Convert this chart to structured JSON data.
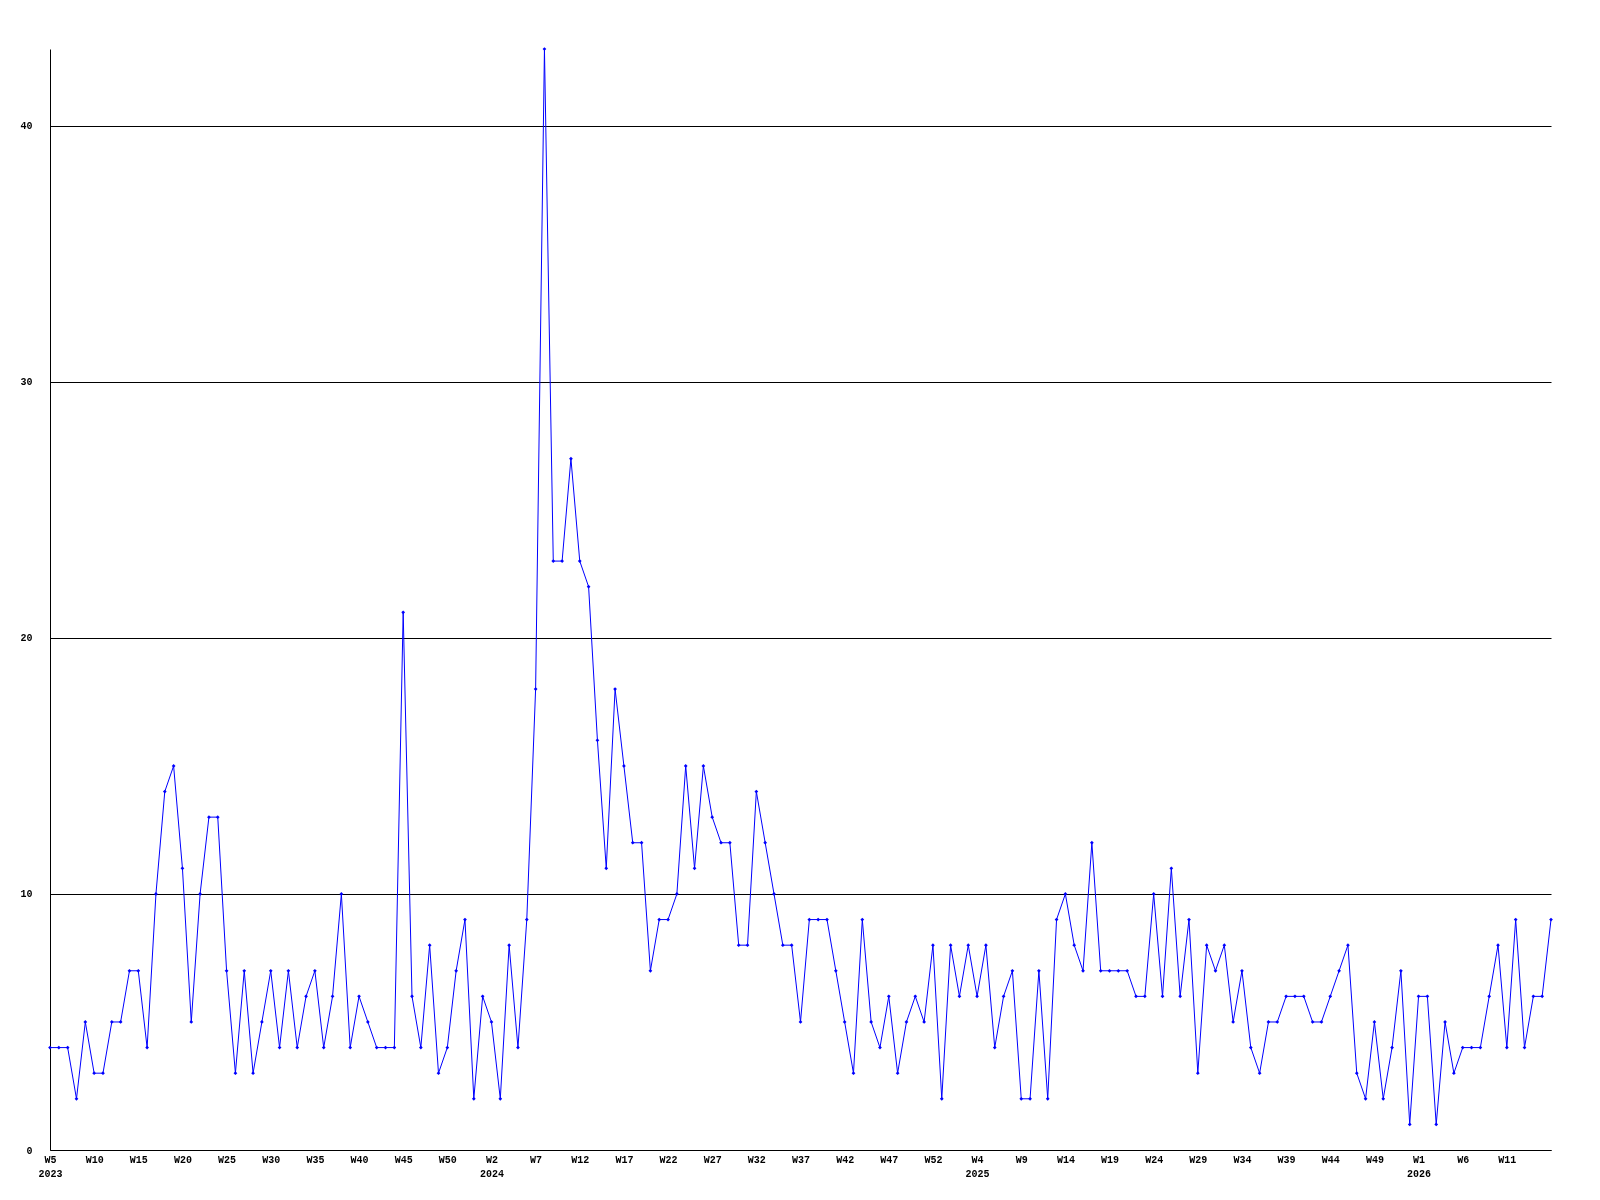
{
  "chart_data": {
    "type": "line",
    "categories": [
      "W5\n2023",
      null,
      null,
      null,
      null,
      "W10",
      null,
      null,
      null,
      null,
      "W15",
      null,
      null,
      null,
      null,
      "W20",
      null,
      null,
      null,
      null,
      "W25",
      null,
      null,
      null,
      null,
      "W30",
      null,
      null,
      null,
      null,
      "W35",
      null,
      null,
      null,
      null,
      "W40",
      null,
      null,
      null,
      null,
      "W45",
      null,
      null,
      null,
      null,
      "W50",
      null,
      null,
      null,
      null,
      "W2\n2024",
      null,
      null,
      null,
      null,
      "W7",
      null,
      null,
      null,
      null,
      "W12",
      null,
      null,
      null,
      null,
      "W17",
      null,
      null,
      null,
      null,
      "W22",
      null,
      null,
      null,
      null,
      "W27",
      null,
      null,
      null,
      null,
      "W32",
      null,
      null,
      null,
      null,
      "W37",
      null,
      null,
      null,
      null,
      "W42",
      null,
      null,
      null,
      null,
      "W47",
      null,
      null,
      null,
      null,
      "W52",
      null,
      null,
      null,
      null,
      "W4\n2025",
      null,
      null,
      null,
      null,
      "W9",
      null,
      null,
      null,
      null,
      "W14",
      null,
      null,
      null,
      null,
      "W19",
      null,
      null,
      null,
      null,
      "W24",
      null,
      null,
      null,
      null,
      "W29",
      null,
      null,
      null,
      null,
      "W34",
      null,
      null,
      null,
      null,
      "W39",
      null,
      null,
      null,
      null,
      "W44",
      null,
      null,
      null,
      null,
      "W49",
      null,
      null,
      null,
      null,
      "W1\n2026",
      null,
      null,
      null,
      null,
      "W6",
      null,
      null,
      null,
      null,
      "W11",
      null,
      null,
      null,
      null,
      null
    ],
    "values": [
      4,
      4,
      4,
      2,
      5,
      3,
      3,
      5,
      5,
      7,
      7,
      4,
      10,
      14,
      15,
      11,
      5,
      10,
      13,
      13,
      7,
      3,
      7,
      3,
      5,
      7,
      4,
      7,
      4,
      6,
      7,
      4,
      6,
      10,
      4,
      6,
      5,
      4,
      4,
      4,
      21,
      6,
      4,
      8,
      3,
      4,
      7,
      9,
      2,
      6,
      5,
      2,
      8,
      4,
      9,
      18,
      43,
      23,
      23,
      27,
      23,
      22,
      16,
      11,
      18,
      15,
      12,
      12,
      7,
      9,
      9,
      10,
      15,
      11,
      15,
      13,
      12,
      12,
      8,
      8,
      14,
      12,
      10,
      8,
      8,
      5,
      9,
      9,
      9,
      7,
      5,
      3,
      9,
      5,
      4,
      6,
      3,
      5,
      6,
      5,
      8,
      2,
      8,
      6,
      8,
      6,
      8,
      4,
      6,
      7,
      2,
      2,
      7,
      2,
      9,
      10,
      8,
      7,
      12,
      7,
      7,
      7,
      7,
      6,
      6,
      10,
      6,
      11,
      6,
      9,
      3,
      8,
      7,
      8,
      5,
      7,
      4,
      3,
      5,
      5,
      6,
      6,
      6,
      5,
      5,
      6,
      7,
      8,
      3,
      2,
      5,
      2,
      4,
      7,
      1,
      6,
      6,
      1,
      5,
      3,
      4,
      4,
      4,
      6,
      8,
      4,
      9,
      4,
      6,
      6,
      9
    ],
    "color": "#0000ff",
    "ylim": [
      0,
      43
    ],
    "yticks": [
      0,
      10,
      20,
      30,
      40
    ],
    "grid": "y",
    "marker": "diamond"
  }
}
